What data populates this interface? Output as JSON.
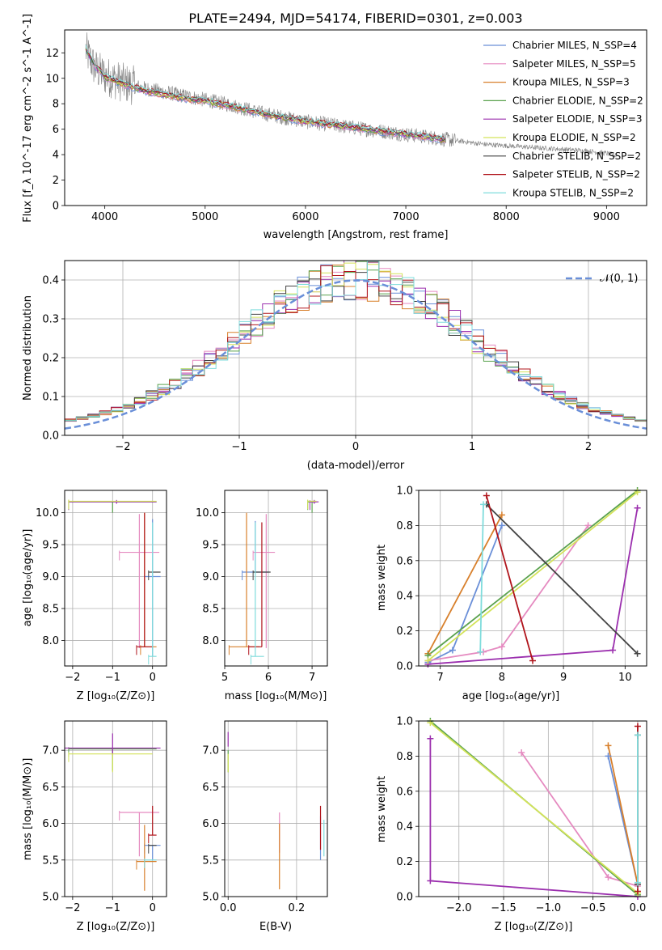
{
  "title": "PLATE=2494, MJD=54174, FIBERID=0301, z=0.003",
  "models": [
    {
      "name": "Chabrier MILES",
      "n": "4",
      "color": "#6a8fd8"
    },
    {
      "name": "Salpeter MILES",
      "n": "5",
      "color": "#e58ac0"
    },
    {
      "name": "Kroupa MILES",
      "n": "3",
      "color": "#d8802c"
    },
    {
      "name": "Chabrier ELODIE",
      "n": "2",
      "color": "#5aa24e"
    },
    {
      "name": "Salpeter ELODIE",
      "n": "3",
      "color": "#9b2fae"
    },
    {
      "name": "Kroupa ELODIE",
      "n": "2",
      "color": "#d4e35a"
    },
    {
      "name": "Chabrier STELIB",
      "n": "2",
      "color": "#444444"
    },
    {
      "name": "Salpeter STELIB",
      "n": "2",
      "color": "#b0141b"
    },
    {
      "name": "Kroupa STELIB",
      "n": "2",
      "color": "#7fdcdc"
    }
  ],
  "chart_data": [
    {
      "id": "spectrum",
      "type": "line",
      "xlabel": "wavelength [Angstrom, rest frame]",
      "ylabel": "Flux [f_λ 10^-17 erg cm^-2 s^-1 A^-1]",
      "xlim": [
        3600,
        9400
      ],
      "ylim": [
        0,
        13.8
      ],
      "xticks": [
        4000,
        5000,
        6000,
        7000,
        8000,
        9000
      ],
      "yticks": [
        0,
        2,
        4,
        6,
        8,
        10,
        12
      ],
      "grid": false,
      "legend_position": "top-right",
      "data_color": "#808080",
      "data_trend": {
        "x": [
          3810,
          3900,
          4000,
          4200,
          4400,
          4600,
          4800,
          5000,
          5200,
          5400,
          5600,
          5800,
          6000,
          6200,
          6400,
          6600,
          6800,
          7000,
          7200,
          7400,
          7600,
          7800,
          8000,
          8200,
          8400,
          8600,
          8800,
          9000,
          9100
        ],
        "y": [
          12.2,
          10.8,
          10.2,
          9.6,
          9.2,
          8.9,
          8.6,
          8.3,
          8.0,
          7.6,
          7.2,
          6.9,
          6.6,
          6.4,
          6.2,
          6.0,
          5.8,
          5.6,
          5.4,
          5.2,
          5.0,
          4.8,
          4.7,
          4.6,
          4.5,
          4.4,
          4.3,
          4.1,
          3.9
        ]
      },
      "model_curve": {
        "x": [
          3810,
          3900,
          4000,
          4200,
          4400,
          4600,
          4800,
          5000,
          5200,
          5400,
          5600,
          5800,
          6000,
          6200,
          6400,
          6600,
          6800,
          7000,
          7200,
          7400
        ],
        "y": [
          12.3,
          11.0,
          10.1,
          9.5,
          9.0,
          8.7,
          8.4,
          8.2,
          7.9,
          7.5,
          7.2,
          6.9,
          6.6,
          6.4,
          6.2,
          6.0,
          5.8,
          5.6,
          5.4,
          5.1
        ]
      }
    },
    {
      "id": "residuals",
      "type": "line",
      "xlabel": "(data-model)/error",
      "ylabel": "Normed distribution",
      "xlim": [
        -2.5,
        2.5
      ],
      "ylim": [
        0,
        0.45
      ],
      "xticks": [
        -2,
        -1,
        0,
        1,
        2
      ],
      "yticks": [
        0.0,
        0.1,
        0.2,
        0.3,
        0.4
      ],
      "grid": true,
      "legend_position": "top-right",
      "reference_series": {
        "name": "𝒩(0, 1)",
        "color": "#6a8fd8",
        "mean": 0,
        "sigma": 1
      },
      "hist_step": 0.1
    },
    {
      "id": "age-vs-metallicity",
      "type": "scatter",
      "xlabel": "Z [log₁₀(Z/Z⊙)]",
      "ylabel": "age  [log₁₀(age/yr)]",
      "xlim": [
        -2.2,
        0.35
      ],
      "ylim": [
        7.6,
        10.35
      ],
      "xticks": [
        -2,
        -1,
        0
      ],
      "yticks": [
        8.0,
        8.5,
        9.0,
        9.5,
        10.0
      ],
      "grid": true
    },
    {
      "id": "age-vs-mass",
      "type": "scatter",
      "xlabel": "mass [log₁₀(M/M⊙)]",
      "ylabel": "",
      "xlim": [
        5,
        7.35
      ],
      "ylim": [
        7.6,
        10.35
      ],
      "xticks": [
        5,
        6,
        7
      ],
      "yticks": [
        8.0,
        8.5,
        9.0,
        9.5,
        10.0
      ],
      "grid": true
    },
    {
      "id": "weight-vs-age",
      "type": "line",
      "xlabel": "age  [log₁₀(age/yr)]",
      "ylabel": "mass weight",
      "xlim": [
        6.65,
        10.35
      ],
      "ylim": [
        0,
        1
      ],
      "xticks": [
        7,
        8,
        9,
        10
      ],
      "yticks": [
        0.0,
        0.2,
        0.4,
        0.6,
        0.8,
        1.0
      ],
      "grid": true,
      "series": [
        {
          "name": "Chabrier MILES",
          "points": [
            [
              6.8,
              0.02
            ],
            [
              7.2,
              0.09
            ],
            [
              8.0,
              0.8
            ]
          ]
        },
        {
          "name": "Salpeter MILES",
          "points": [
            [
              6.8,
              0.03
            ],
            [
              7.7,
              0.08
            ],
            [
              8.0,
              0.11
            ],
            [
              9.4,
              0.8
            ]
          ]
        },
        {
          "name": "Kroupa MILES",
          "points": [
            [
              6.8,
              0.07
            ],
            [
              8.0,
              0.86
            ]
          ]
        },
        {
          "name": "Chabrier ELODIE",
          "points": [
            [
              6.8,
              0.06
            ],
            [
              10.2,
              1.0
            ]
          ]
        },
        {
          "name": "Salpeter ELODIE",
          "points": [
            [
              6.8,
              0.01
            ],
            [
              9.8,
              0.09
            ],
            [
              10.2,
              0.9
            ]
          ]
        },
        {
          "name": "Kroupa ELODIE",
          "points": [
            [
              6.8,
              0.03
            ],
            [
              10.2,
              0.99
            ]
          ]
        },
        {
          "name": "Chabrier STELIB",
          "points": [
            [
              7.75,
              0.92
            ],
            [
              10.2,
              0.07
            ]
          ]
        },
        {
          "name": "Salpeter STELIB",
          "points": [
            [
              7.75,
              0.97
            ],
            [
              8.5,
              0.03
            ]
          ]
        },
        {
          "name": "Kroupa STELIB",
          "points": [
            [
              7.65,
              0.08
            ],
            [
              7.7,
              0.92
            ]
          ]
        }
      ]
    },
    {
      "id": "mass-vs-metallicity",
      "type": "scatter",
      "xlabel": "Z [log₁₀(Z/Z⊙)]",
      "ylabel": "mass [log₁₀(M/M⊙)]",
      "xlim": [
        -2.2,
        0.35
      ],
      "ylim": [
        5.0,
        7.4
      ],
      "xticks": [
        -2,
        -1,
        0
      ],
      "yticks": [
        5.0,
        5.5,
        6.0,
        6.5,
        7.0
      ],
      "grid": true
    },
    {
      "id": "mass-vs-ebv",
      "type": "scatter",
      "xlabel": "E(B-V)",
      "ylabel": "",
      "xlim": [
        -0.01,
        0.29
      ],
      "ylim": [
        5.0,
        7.4
      ],
      "xticks": [
        0.0,
        0.2
      ],
      "yticks": [
        5.0,
        5.5,
        6.0,
        6.5,
        7.0
      ],
      "grid": true
    },
    {
      "id": "weight-vs-metallicity",
      "type": "line",
      "xlabel": "Z [log₁₀(Z/Z⊙)]",
      "ylabel": "mass weight",
      "xlim": [
        -2.45,
        0.1
      ],
      "ylim": [
        0,
        1
      ],
      "xticks": [
        -2.0,
        -1.5,
        -1.0,
        -0.5,
        0.0
      ],
      "yticks": [
        0.0,
        0.2,
        0.4,
        0.6,
        0.8,
        1.0
      ],
      "grid": true,
      "series": [
        {
          "name": "Chabrier MILES",
          "points": [
            [
              -0.33,
              0.8
            ],
            [
              0.0,
              0.07
            ]
          ]
        },
        {
          "name": "Salpeter MILES",
          "points": [
            [
              -1.3,
              0.82
            ],
            [
              -0.33,
              0.11
            ],
            [
              0.0,
              0.06
            ]
          ]
        },
        {
          "name": "Kroupa MILES",
          "points": [
            [
              -0.33,
              0.86
            ],
            [
              0.0,
              0.07
            ]
          ]
        },
        {
          "name": "Chabrier ELODIE",
          "points": [
            [
              -2.32,
              1.0
            ],
            [
              0.0,
              0.01
            ]
          ]
        },
        {
          "name": "Salpeter ELODIE",
          "points": [
            [
              -2.32,
              0.9
            ],
            [
              -2.32,
              0.09
            ],
            [
              0.0,
              0.0
            ]
          ]
        },
        {
          "name": "Kroupa ELODIE",
          "points": [
            [
              -2.32,
              0.99
            ],
            [
              0.0,
              0.02
            ]
          ]
        },
        {
          "name": "Chabrier STELIB",
          "points": [
            [
              0.0,
              0.92
            ],
            [
              0.0,
              0.07
            ]
          ]
        },
        {
          "name": "Salpeter STELIB",
          "points": [
            [
              0.0,
              0.97
            ],
            [
              0.0,
              0.03
            ]
          ]
        },
        {
          "name": "Kroupa STELIB",
          "points": [
            [
              0.0,
              0.92
            ],
            [
              0.0,
              0.08
            ]
          ]
        }
      ]
    }
  ],
  "errorbars": {
    "age_Z": [
      {
        "m": 0,
        "x": 0.0,
        "y": 9.0,
        "xe": [
          0.2,
          0.2
        ],
        "ye": [
          1.25,
          0.9
        ]
      },
      {
        "m": 1,
        "x": -0.33,
        "y": 9.38,
        "xe": [
          0.5,
          0.5
        ],
        "ye": [
          1.5,
          0.6
        ]
      },
      {
        "m": 2,
        "x": -0.2,
        "y": 7.9,
        "xe": [
          0.1,
          0.3
        ],
        "ye": [
          0.0,
          2.1
        ]
      },
      {
        "m": 3,
        "x": -1.0,
        "y": 10.17,
        "xe": [
          1.1,
          1.1
        ],
        "ye": [
          0.17,
          0.0
        ]
      },
      {
        "m": 4,
        "x": -0.9,
        "y": 10.17,
        "xe": [
          1.2,
          1.0
        ],
        "ye": [
          0.03,
          0.03
        ]
      },
      {
        "m": 5,
        "x": -1.0,
        "y": 10.18,
        "xe": [
          1.1,
          1.1
        ],
        "ye": [
          0.0,
          0.0
        ]
      },
      {
        "m": 6,
        "x": 0.0,
        "y": 9.07,
        "xe": [
          0.1,
          0.2
        ],
        "ye": [
          0.0,
          0.0
        ]
      },
      {
        "m": 7,
        "x": -0.2,
        "y": 7.9,
        "xe": [
          0.2,
          0.2
        ],
        "ye": [
          0.0,
          2.1
        ]
      },
      {
        "m": 8,
        "x": 0.0,
        "y": 7.75,
        "xe": [
          0.1,
          0.1
        ],
        "ye": [
          0.0,
          2.1
        ]
      }
    ],
    "age_mass": [
      {
        "m": 0,
        "x": 5.7,
        "y": 9.07,
        "xe": [
          0.3,
          0.3
        ],
        "ye": [
          0.0,
          0.8
        ]
      },
      {
        "m": 1,
        "x": 5.95,
        "y": 9.38,
        "xe": [
          0.3,
          0.2
        ],
        "ye": [
          1.5,
          0.6
        ]
      },
      {
        "m": 2,
        "x": 5.5,
        "y": 7.9,
        "xe": [
          0.4,
          0.3
        ],
        "ye": [
          0.0,
          2.1
        ]
      },
      {
        "m": 3,
        "x": 7.0,
        "y": 10.17,
        "xe": [
          0.1,
          0.1
        ],
        "ye": [
          0.17,
          0.0
        ]
      },
      {
        "m": 4,
        "x": 7.05,
        "y": 10.17,
        "xe": [
          0.1,
          0.1
        ],
        "ye": [
          0.03,
          0.03
        ]
      },
      {
        "m": 5,
        "x": 7.0,
        "y": 10.18,
        "xe": [
          0.1,
          0.1
        ],
        "ye": [
          0.0,
          0.0
        ]
      },
      {
        "m": 6,
        "x": 5.85,
        "y": 9.07,
        "xe": [
          0.2,
          0.2
        ],
        "ye": [
          0.0,
          0.0
        ]
      },
      {
        "m": 7,
        "x": 5.85,
        "y": 7.9,
        "xe": [
          0.3,
          0.0
        ],
        "ye": [
          0.0,
          1.95
        ]
      },
      {
        "m": 8,
        "x": 5.7,
        "y": 7.75,
        "xe": [
          0.1,
          0.2
        ],
        "ye": [
          0.0,
          2.1
        ]
      }
    ],
    "mass_Z": [
      {
        "m": 0,
        "x": 0.0,
        "y": 5.7,
        "xe": [
          0.2,
          0.2
        ],
        "ye": [
          0.2,
          0.0
        ]
      },
      {
        "m": 1,
        "x": -0.33,
        "y": 6.15,
        "xe": [
          0.5,
          0.5
        ],
        "ye": [
          0.6,
          0.0
        ]
      },
      {
        "m": 2,
        "x": -0.2,
        "y": 5.48,
        "xe": [
          0.2,
          0.3
        ],
        "ye": [
          0.4,
          0.5
        ]
      },
      {
        "m": 3,
        "x": -1.0,
        "y": 7.02,
        "xe": [
          1.1,
          1.1
        ],
        "ye": [
          0.3,
          0.0
        ]
      },
      {
        "m": 4,
        "x": -1.0,
        "y": 7.03,
        "xe": [
          1.2,
          1.2
        ],
        "ye": [
          0.1,
          0.2
        ]
      },
      {
        "m": 5,
        "x": -1.0,
        "y": 6.95,
        "xe": [
          1.1,
          1.0
        ],
        "ye": [
          0.25,
          0.0
        ]
      },
      {
        "m": 6,
        "x": 0.0,
        "y": 5.7,
        "xe": [
          0.1,
          0.1
        ],
        "ye": [
          0.0,
          0.0
        ]
      },
      {
        "m": 7,
        "x": 0.0,
        "y": 5.84,
        "xe": [
          0.1,
          0.1
        ],
        "ye": [
          0.0,
          0.4
        ]
      },
      {
        "m": 8,
        "x": -0.1,
        "y": 5.5,
        "xe": [
          0.1,
          0.2
        ],
        "ye": [
          0.0,
          0.0
        ]
      }
    ],
    "mass_ebv": [
      {
        "m": 0,
        "x": 0.27,
        "y": 5.7,
        "ye": [
          0.2,
          0.4
        ]
      },
      {
        "m": 1,
        "x": 0.15,
        "y": 5.9,
        "ye": [
          0.3,
          0.25
        ]
      },
      {
        "m": 2,
        "x": 0.15,
        "y": 5.5,
        "ye": [
          0.4,
          0.5
        ]
      },
      {
        "m": 3,
        "x": 0.0,
        "y": 7.0,
        "ye": [
          0.3,
          0.0
        ]
      },
      {
        "m": 4,
        "x": 0.0,
        "y": 7.15,
        "ye": [
          0.1,
          0.1
        ]
      },
      {
        "m": 5,
        "x": 0.0,
        "y": 6.95,
        "ye": [
          0.25,
          0.0
        ]
      },
      {
        "m": 6,
        "x": 0.27,
        "y": 5.85,
        "ye": [
          0.0,
          0.0
        ]
      },
      {
        "m": 7,
        "x": 0.27,
        "y": 5.84,
        "ye": [
          0.2,
          0.4
        ]
      },
      {
        "m": 8,
        "x": 0.28,
        "y": 5.55,
        "ye": [
          0.0,
          0.5
        ]
      }
    ]
  }
}
